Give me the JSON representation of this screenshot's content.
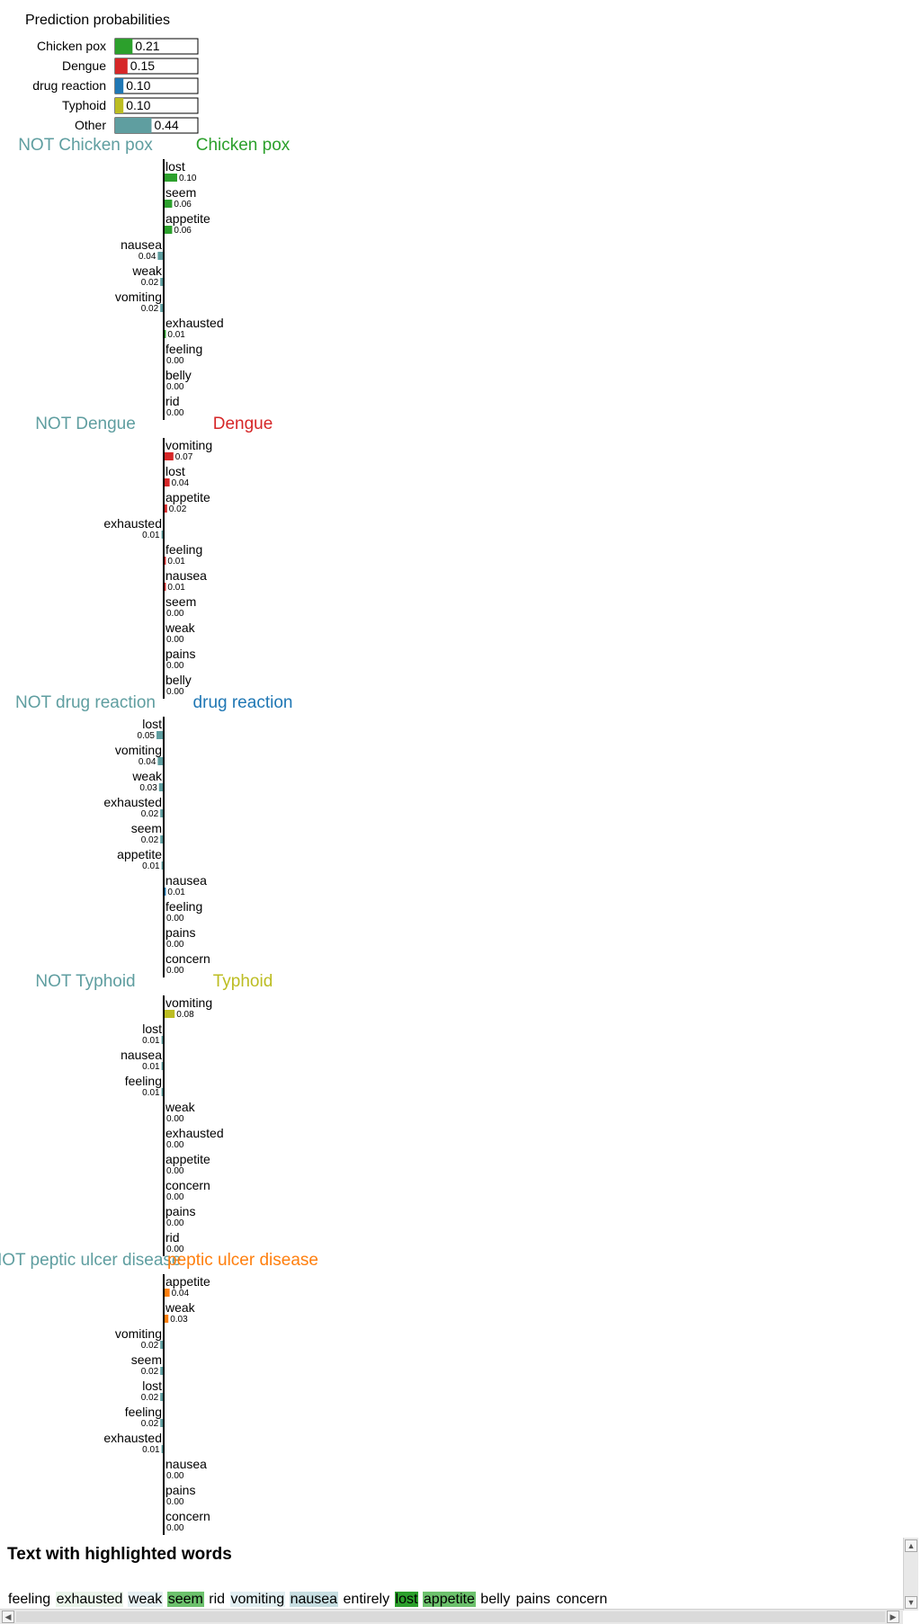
{
  "predict_proba": {
    "title": "Prediction probabilities",
    "items": [
      {
        "name": "Chicken pox",
        "value": 0.21,
        "label": "0.21",
        "color": "#2ca02c"
      },
      {
        "name": "Dengue",
        "value": 0.15,
        "label": "0.15",
        "color": "#d62728"
      },
      {
        "name": "drug reaction",
        "value": 0.1,
        "label": "0.10",
        "color": "#1f77b4"
      },
      {
        "name": "Typhoid",
        "value": 0.1,
        "label": "0.10",
        "color": "#bcbd22"
      },
      {
        "name": "Other",
        "value": 0.44,
        "label": "0.44",
        "color": "#5f9ea0"
      }
    ]
  },
  "explanations": [
    {
      "class_name": "Chicken pox",
      "not_label": "NOT Chicken pox",
      "color": "#2ca02c",
      "features": [
        {
          "word": "lost",
          "weight": 0.1,
          "label": "0.10"
        },
        {
          "word": "seem",
          "weight": 0.06,
          "label": "0.06"
        },
        {
          "word": "appetite",
          "weight": 0.06,
          "label": "0.06"
        },
        {
          "word": "nausea",
          "weight": -0.04,
          "label": "0.04"
        },
        {
          "word": "weak",
          "weight": -0.02,
          "label": "0.02"
        },
        {
          "word": "vomiting",
          "weight": -0.02,
          "label": "0.02"
        },
        {
          "word": "exhausted",
          "weight": 0.01,
          "label": "0.01"
        },
        {
          "word": "feeling",
          "weight": 0.0,
          "label": "0.00"
        },
        {
          "word": "belly",
          "weight": 0.0,
          "label": "0.00"
        },
        {
          "word": "rid",
          "weight": -0.0,
          "label": "0.00"
        }
      ]
    },
    {
      "class_name": "Dengue",
      "not_label": "NOT Dengue",
      "color": "#d62728",
      "features": [
        {
          "word": "vomiting",
          "weight": 0.07,
          "label": "0.07"
        },
        {
          "word": "lost",
          "weight": 0.04,
          "label": "0.04"
        },
        {
          "word": "appetite",
          "weight": 0.02,
          "label": "0.02"
        },
        {
          "word": "exhausted",
          "weight": -0.01,
          "label": "0.01"
        },
        {
          "word": "feeling",
          "weight": 0.01,
          "label": "0.01"
        },
        {
          "word": "nausea",
          "weight": 0.01,
          "label": "0.01"
        },
        {
          "word": "seem",
          "weight": -0.0,
          "label": "0.00"
        },
        {
          "word": "weak",
          "weight": 0.0,
          "label": "0.00"
        },
        {
          "word": "pains",
          "weight": 0.0,
          "label": "0.00"
        },
        {
          "word": "belly",
          "weight": 0.0,
          "label": "0.00"
        }
      ]
    },
    {
      "class_name": "drug reaction",
      "not_label": "NOT drug reaction",
      "color": "#1f77b4",
      "features": [
        {
          "word": "lost",
          "weight": -0.05,
          "label": "0.05"
        },
        {
          "word": "vomiting",
          "weight": -0.04,
          "label": "0.04"
        },
        {
          "word": "weak",
          "weight": -0.03,
          "label": "0.03"
        },
        {
          "word": "exhausted",
          "weight": -0.02,
          "label": "0.02"
        },
        {
          "word": "seem",
          "weight": -0.02,
          "label": "0.02"
        },
        {
          "word": "appetite",
          "weight": -0.01,
          "label": "0.01"
        },
        {
          "word": "nausea",
          "weight": 0.01,
          "label": "0.01"
        },
        {
          "word": "feeling",
          "weight": 0.0,
          "label": "0.00"
        },
        {
          "word": "pains",
          "weight": -0.0,
          "label": "0.00"
        },
        {
          "word": "concern",
          "weight": 0.0,
          "label": "0.00"
        }
      ]
    },
    {
      "class_name": "Typhoid",
      "not_label": "NOT Typhoid",
      "color": "#bcbd22",
      "features": [
        {
          "word": "vomiting",
          "weight": 0.08,
          "label": "0.08"
        },
        {
          "word": "lost",
          "weight": -0.01,
          "label": "0.01"
        },
        {
          "word": "nausea",
          "weight": -0.01,
          "label": "0.01"
        },
        {
          "word": "feeling",
          "weight": -0.01,
          "label": "0.01"
        },
        {
          "word": "weak",
          "weight": 0.0,
          "label": "0.00"
        },
        {
          "word": "exhausted",
          "weight": -0.0,
          "label": "0.00"
        },
        {
          "word": "appetite",
          "weight": 0.0,
          "label": "0.00"
        },
        {
          "word": "concern",
          "weight": -0.0,
          "label": "0.00"
        },
        {
          "word": "pains",
          "weight": 0.0,
          "label": "0.00"
        },
        {
          "word": "rid",
          "weight": -0.0,
          "label": "0.00"
        }
      ]
    },
    {
      "class_name": "peptic ulcer disease",
      "not_label": "NOT peptic ulcer disease",
      "color": "#ff7f0e",
      "features": [
        {
          "word": "appetite",
          "weight": 0.04,
          "label": "0.04"
        },
        {
          "word": "weak",
          "weight": 0.03,
          "label": "0.03"
        },
        {
          "word": "vomiting",
          "weight": -0.02,
          "label": "0.02"
        },
        {
          "word": "seem",
          "weight": -0.02,
          "label": "0.02"
        },
        {
          "word": "lost",
          "weight": -0.02,
          "label": "0.02"
        },
        {
          "word": "feeling",
          "weight": -0.02,
          "label": "0.02"
        },
        {
          "word": "exhausted",
          "weight": -0.01,
          "label": "0.01"
        },
        {
          "word": "nausea",
          "weight": 0.0,
          "label": "0.00"
        },
        {
          "word": "pains",
          "weight": 0.0,
          "label": "0.00"
        },
        {
          "word": "concern",
          "weight": -0.0,
          "label": "0.00"
        }
      ]
    }
  ],
  "text_highlight": {
    "title": "Text with highlighted words",
    "words": [
      {
        "text": "feeling",
        "color": "#ffffff"
      },
      {
        "text": "exhausted",
        "color": "#eaf5ea"
      },
      {
        "text": "weak",
        "color": "#e6f0f2"
      },
      {
        "text": "seem",
        "color": "#6cc16c"
      },
      {
        "text": "rid",
        "color": "#ffffff"
      },
      {
        "text": "vomiting",
        "color": "#e2eff2"
      },
      {
        "text": "nausea",
        "color": "#c8dfe2"
      },
      {
        "text": "entirely",
        "color": "#ffffff"
      },
      {
        "text": "lost",
        "color": "#2ca02c"
      },
      {
        "text": "appetite",
        "color": "#6cc16c"
      },
      {
        "text": "belly",
        "color": "#ffffff"
      },
      {
        "text": "pains",
        "color": "#ffffff"
      },
      {
        "text": "concern",
        "color": "#ffffff"
      }
    ]
  },
  "scrollbars": {
    "up_arrow": "▲",
    "down_arrow": "▼",
    "left_arrow": "◀",
    "right_arrow": "▶"
  }
}
